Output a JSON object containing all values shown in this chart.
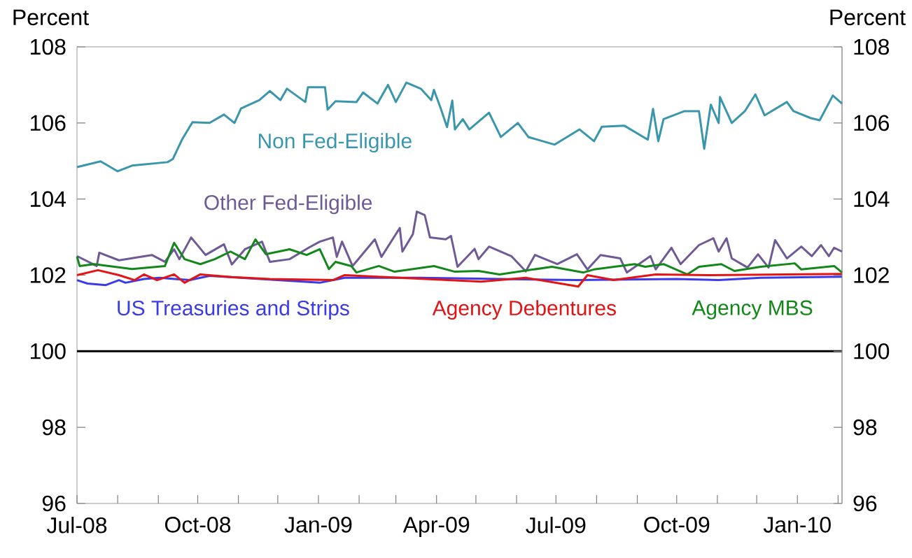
{
  "chart_data": {
    "type": "line",
    "ylabel": "Percent",
    "y2label": "Percent",
    "xlim": [
      "2008-07-01",
      "2010-02-04"
    ],
    "xticks": [
      {
        "value": "2008-07-01",
        "label": "Jul-08"
      },
      {
        "value": "2008-08-01",
        "label": null
      },
      {
        "value": "2008-09-01",
        "label": null
      },
      {
        "value": "2008-10-01",
        "label": "Oct-08"
      },
      {
        "value": "2008-11-01",
        "label": null
      },
      {
        "value": "2008-12-01",
        "label": null
      },
      {
        "value": "2009-01-01",
        "label": "Jan-09"
      },
      {
        "value": "2009-02-01",
        "label": null
      },
      {
        "value": "2009-03-01",
        "label": null
      },
      {
        "value": "2009-04-01",
        "label": "Apr-09"
      },
      {
        "value": "2009-05-01",
        "label": null
      },
      {
        "value": "2009-06-01",
        "label": null
      },
      {
        "value": "2009-07-01",
        "label": "Jul-09"
      },
      {
        "value": "2009-08-01",
        "label": null
      },
      {
        "value": "2009-09-01",
        "label": null
      },
      {
        "value": "2009-10-01",
        "label": "Oct-09"
      },
      {
        "value": "2009-11-01",
        "label": null
      },
      {
        "value": "2009-12-01",
        "label": null
      },
      {
        "value": "2010-01-01",
        "label": "Jan-10"
      },
      {
        "value": "2010-02-01",
        "label": null
      }
    ],
    "ylim": [
      96,
      108
    ],
    "yticks": [
      96,
      98,
      100,
      102,
      104,
      106,
      108
    ],
    "y2lim": [
      96,
      108
    ],
    "y2ticks": [
      96,
      98,
      100,
      102,
      104,
      106,
      108
    ],
    "ref_lines": [
      {
        "axis": "y",
        "value": 100,
        "color": "#000000"
      }
    ],
    "series": [
      {
        "name": "Non Fed-Eligible",
        "color": "#3a96ad",
        "x": [
          "2008-07-01",
          "2008-07-19",
          "2008-08-01",
          "2008-08-12",
          "2008-09-08",
          "2008-09-12",
          "2008-09-19",
          "2008-09-27",
          "2008-10-10",
          "2008-10-21",
          "2008-10-29",
          "2008-11-03",
          "2008-11-17",
          "2008-11-25",
          "2008-12-03",
          "2008-12-08",
          "2008-12-22",
          "2008-12-24",
          "2009-01-06",
          "2009-01-08",
          "2009-01-14",
          "2009-01-30",
          "2009-02-04",
          "2009-02-15",
          "2009-02-23",
          "2009-03-01",
          "2009-03-09",
          "2009-03-20",
          "2009-03-28",
          "2009-03-30",
          "2009-04-04",
          "2009-04-09",
          "2009-04-13",
          "2009-04-15",
          "2009-04-21",
          "2009-04-26",
          "2009-05-11",
          "2009-05-20",
          "2009-06-02",
          "2009-06-10",
          "2009-06-30",
          "2009-07-19",
          "2009-07-30",
          "2009-08-05",
          "2009-08-22",
          "2009-09-09",
          "2009-09-13",
          "2009-09-17",
          "2009-09-21",
          "2009-10-07",
          "2009-10-18",
          "2009-10-22",
          "2009-10-27",
          "2009-11-02",
          "2009-11-03",
          "2009-11-12",
          "2009-11-22",
          "2009-11-30",
          "2009-12-07",
          "2009-12-24",
          "2009-12-29",
          "2010-01-11",
          "2010-01-18",
          "2010-01-28",
          "2010-02-04"
        ],
        "values": [
          104.84,
          104.99,
          104.73,
          104.88,
          104.97,
          105.05,
          105.56,
          106.02,
          106.0,
          106.22,
          106.0,
          106.38,
          106.6,
          106.84,
          106.6,
          106.9,
          106.55,
          106.94,
          106.94,
          106.35,
          106.57,
          106.55,
          106.8,
          106.51,
          107.0,
          106.55,
          107.06,
          106.9,
          106.6,
          106.87,
          106.4,
          105.89,
          106.59,
          105.83,
          106.1,
          105.83,
          106.27,
          105.63,
          106.0,
          105.63,
          105.43,
          105.83,
          105.52,
          105.9,
          105.93,
          105.56,
          106.37,
          105.52,
          106.1,
          106.31,
          106.31,
          105.32,
          106.48,
          106.0,
          106.68,
          106.0,
          106.31,
          106.75,
          106.2,
          106.55,
          106.31,
          106.13,
          106.07,
          106.72,
          106.51
        ]
      },
      {
        "name": "Other Fed-Eligible",
        "color": "#6e5a96",
        "x": [
          "2008-07-01",
          "2008-07-16",
          "2008-07-18",
          "2008-08-02",
          "2008-08-27",
          "2008-09-06",
          "2008-09-13",
          "2008-09-17",
          "2008-09-26",
          "2008-10-07",
          "2008-10-21",
          "2008-10-27",
          "2008-11-06",
          "2008-11-19",
          "2008-11-25",
          "2008-12-10",
          "2008-12-25",
          "2009-01-02",
          "2009-01-12",
          "2009-01-15",
          "2009-01-19",
          "2009-01-27",
          "2009-02-13",
          "2009-02-18",
          "2009-03-04",
          "2009-03-06",
          "2009-03-14",
          "2009-03-17",
          "2009-03-23",
          "2009-03-27",
          "2009-04-08",
          "2009-04-12",
          "2009-04-17",
          "2009-04-30",
          "2009-05-03",
          "2009-05-11",
          "2009-05-28",
          "2009-06-08",
          "2009-06-15",
          "2009-07-02",
          "2009-07-17",
          "2009-07-25",
          "2009-08-04",
          "2009-08-19",
          "2009-08-24",
          "2009-09-11",
          "2009-09-15",
          "2009-09-27",
          "2009-10-04",
          "2009-10-18",
          "2009-10-29",
          "2009-11-02",
          "2009-11-08",
          "2009-11-12",
          "2009-11-24",
          "2009-12-02",
          "2009-12-10",
          "2009-12-15",
          "2009-12-24",
          "2010-01-04",
          "2010-01-12",
          "2010-01-19",
          "2010-01-25",
          "2010-01-29",
          "2010-02-04"
        ],
        "values": [
          102.5,
          102.24,
          102.59,
          102.39,
          102.53,
          102.35,
          102.68,
          102.42,
          102.99,
          102.53,
          102.81,
          102.28,
          102.68,
          102.88,
          102.35,
          102.42,
          102.73,
          102.88,
          102.99,
          102.48,
          102.88,
          102.24,
          102.94,
          102.48,
          103.24,
          102.62,
          103.08,
          103.67,
          103.58,
          102.99,
          102.94,
          103.03,
          102.22,
          102.69,
          102.42,
          102.75,
          102.5,
          102.1,
          102.53,
          102.29,
          102.55,
          102.15,
          102.53,
          102.44,
          102.07,
          102.5,
          102.15,
          102.72,
          102.29,
          102.79,
          102.97,
          102.62,
          102.97,
          102.44,
          102.2,
          102.55,
          102.2,
          102.92,
          102.44,
          102.75,
          102.5,
          102.79,
          102.5,
          102.72,
          102.62
        ]
      },
      {
        "name": "Agency MBS",
        "color": "#13871a",
        "x": [
          "2008-07-01",
          "2008-07-03",
          "2008-07-14",
          "2008-08-12",
          "2008-09-06",
          "2008-09-13",
          "2008-09-21",
          "2008-10-03",
          "2008-10-14",
          "2008-10-26",
          "2008-11-06",
          "2008-11-14",
          "2008-11-22",
          "2008-12-10",
          "2008-12-23",
          "2009-01-02",
          "2009-01-09",
          "2009-01-14",
          "2009-01-26",
          "2009-01-30",
          "2009-02-16",
          "2009-02-28",
          "2009-03-30",
          "2009-04-15",
          "2009-05-03",
          "2009-05-19",
          "2009-06-28",
          "2009-07-22",
          "2009-07-30",
          "2009-08-30",
          "2009-09-07",
          "2009-09-21",
          "2009-10-09",
          "2009-10-18",
          "2009-11-04",
          "2009-11-14",
          "2009-12-04",
          "2009-12-30",
          "2010-01-04",
          "2010-01-29",
          "2010-02-04"
        ],
        "values": [
          102.49,
          102.24,
          102.29,
          102.16,
          102.24,
          102.85,
          102.42,
          102.29,
          102.42,
          102.62,
          102.42,
          102.94,
          102.55,
          102.68,
          102.53,
          102.68,
          102.16,
          102.35,
          102.24,
          102.07,
          102.24,
          102.09,
          102.24,
          102.09,
          102.11,
          102.02,
          102.22,
          102.07,
          102.15,
          102.29,
          102.22,
          102.29,
          102.02,
          102.22,
          102.29,
          102.11,
          102.22,
          102.31,
          102.15,
          102.24,
          102.07
        ]
      },
      {
        "name": "US Treasuries and Strips",
        "color": "#3b3bea",
        "x": [
          "2008-07-01",
          "2008-07-09",
          "2008-07-23",
          "2008-08-02",
          "2008-08-07",
          "2008-08-21",
          "2008-09-02",
          "2008-09-25",
          "2008-10-10",
          "2009-01-02",
          "2009-01-21",
          "2009-03-20",
          "2009-07-17",
          "2009-10-01",
          "2009-11-02",
          "2009-12-04",
          "2010-02-04"
        ],
        "values": [
          101.87,
          101.78,
          101.74,
          101.87,
          101.8,
          101.9,
          101.93,
          101.87,
          101.98,
          101.8,
          101.93,
          101.93,
          101.87,
          101.9,
          101.87,
          101.93,
          101.96
        ]
      },
      {
        "name": "Agency Debentures",
        "color": "#e31414",
        "x": [
          "2008-07-01",
          "2008-07-17",
          "2008-08-02",
          "2008-08-14",
          "2008-08-21",
          "2008-08-31",
          "2008-09-13",
          "2008-09-21",
          "2008-10-03",
          "2008-10-27",
          "2008-11-25",
          "2009-01-12",
          "2009-01-21",
          "2009-05-05",
          "2009-06-08",
          "2009-07-18",
          "2009-07-25",
          "2009-08-14",
          "2009-09-15",
          "2009-10-25",
          "2010-02-04"
        ],
        "values": [
          102.0,
          102.13,
          102.0,
          101.87,
          102.02,
          101.87,
          102.02,
          101.8,
          102.02,
          101.95,
          101.9,
          101.87,
          102.0,
          101.83,
          101.93,
          101.7,
          102.0,
          101.87,
          102.02,
          102.0,
          102.03
        ]
      }
    ]
  }
}
